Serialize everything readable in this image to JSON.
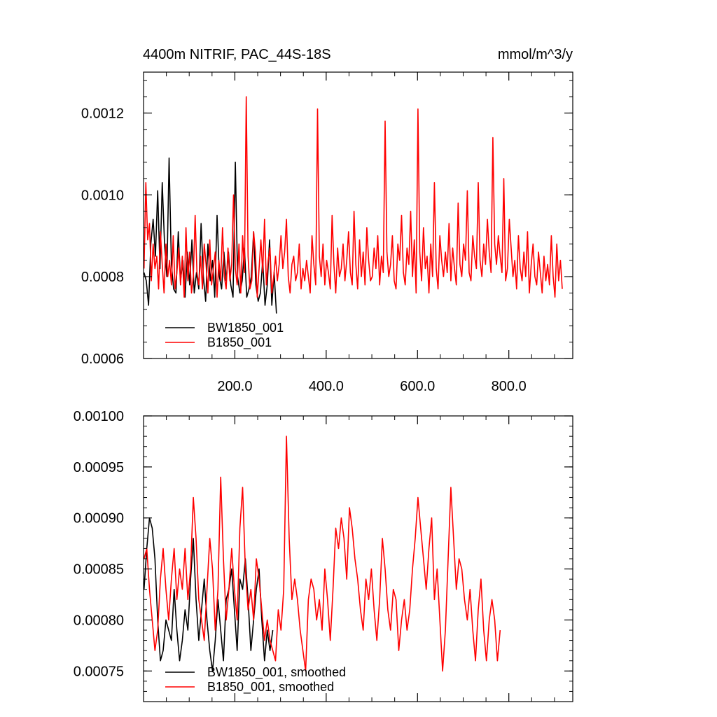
{
  "header": {
    "title": "4400m NITRIF, PAC_44S-18S",
    "units": "mmol/m^3/y"
  },
  "chart_data": [
    {
      "type": "line",
      "xlim": [
        0,
        940
      ],
      "ylim": [
        0.0006,
        0.0013
      ],
      "x_tick_labels": [
        "200.0",
        "400.0",
        "600.0",
        "800.0"
      ],
      "x_ticks": [
        200,
        400,
        600,
        800
      ],
      "y_tick_labels": [
        "0.0006",
        "0.0008",
        "0.0010",
        "0.0012"
      ],
      "y_ticks": [
        0.0006,
        0.0008,
        0.001,
        0.0012
      ],
      "legend_position": "bottom-left",
      "grid": false,
      "series": [
        {
          "name": "BW1850_001",
          "color": "#000000",
          "x_start": 1,
          "x_step": 5,
          "values": [
            0.00081,
            0.00079,
            0.00073,
            0.00088,
            0.00094,
            0.00085,
            0.00101,
            0.00082,
            0.00103,
            0.00088,
            0.0008,
            0.00109,
            0.00083,
            0.00077,
            0.00076,
            0.00091,
            0.00079,
            0.00084,
            0.00075,
            0.00086,
            0.00078,
            0.00089,
            0.00076,
            0.00081,
            0.00077,
            0.00093,
            0.0008,
            0.00074,
            0.00088,
            0.00079,
            0.00084,
            0.00075,
            0.00095,
            0.0008,
            0.00077,
            0.00086,
            0.00079,
            0.00086,
            0.00078,
            0.00075,
            0.00108,
            0.0008,
            0.00076,
            0.00079,
            0.00087,
            0.00075,
            0.00077,
            0.0008,
            0.00091,
            0.00078,
            0.00074,
            0.00076,
            0.00084,
            0.00073,
            0.00078,
            0.00089,
            0.00073,
            0.00081,
            0.00071
          ]
        },
        {
          "name": "B1850_001",
          "color": "#ff0000",
          "x_start": 1,
          "x_step": 4,
          "values": [
            0.00082,
            0.00103,
            0.00089,
            0.00093,
            0.00079,
            0.00088,
            0.00082,
            0.00085,
            0.00077,
            0.00091,
            0.00083,
            0.00076,
            0.00088,
            0.0008,
            0.00084,
            0.00078,
            0.0009,
            0.00077,
            0.00081,
            0.00087,
            0.00078,
            0.00085,
            0.00075,
            0.00092,
            0.00079,
            0.00086,
            0.00076,
            0.0008,
            0.00095,
            0.00081,
            0.00078,
            0.00085,
            0.00077,
            0.00088,
            0.00083,
            0.00076,
            0.00089,
            0.00078,
            0.00082,
            0.00086,
            0.00075,
            0.00084,
            0.00079,
            0.00092,
            0.0008,
            0.00077,
            0.00087,
            0.00079,
            0.00083,
            0.001,
            0.00082,
            0.00078,
            0.00088,
            0.00076,
            0.0009,
            0.00081,
            0.00124,
            0.00085,
            0.00077,
            0.00079,
            0.00091,
            0.00086,
            0.00075,
            0.00082,
            0.00089,
            0.00081,
            0.00094,
            0.00078,
            0.00084,
            0.00087,
            0.00076,
            0.0008,
            0.00085,
            0.00079,
            0.00083,
            0.0009,
            0.00082,
            0.00086,
            0.00094,
            0.0008,
            0.00076,
            0.00083,
            0.00085,
            0.00079,
            0.00081,
            0.00088,
            0.00077,
            0.00082,
            0.00079,
            0.00084,
            0.0008,
            0.00076,
            0.0009,
            0.00083,
            0.00078,
            0.00121,
            0.00085,
            0.0008,
            0.00088,
            0.00078,
            0.00084,
            0.00081,
            0.00077,
            0.00095,
            0.00083,
            0.00076,
            0.00087,
            0.0008,
            0.00082,
            0.00088,
            0.00079,
            0.00084,
            0.00091,
            0.00081,
            0.00078,
            0.00096,
            0.00083,
            0.00077,
            0.00089,
            0.0008,
            0.00086,
            0.00078,
            0.00092,
            0.00084,
            0.00079,
            0.0008,
            0.00087,
            0.00082,
            0.0009,
            0.00078,
            0.00085,
            0.00081,
            0.00118,
            0.00086,
            0.0008,
            0.00083,
            0.0009,
            0.00079,
            0.00077,
            0.00088,
            0.00084,
            0.00095,
            0.00081,
            0.00078,
            0.00087,
            0.00083,
            0.00096,
            0.0008,
            0.00089,
            0.00076,
            0.00121,
            0.00086,
            0.00079,
            0.00092,
            0.00082,
            0.00085,
            0.00076,
            0.00088,
            0.0008,
            0.00103,
            0.00082,
            0.00077,
            0.0009,
            0.00084,
            0.0008,
            0.00086,
            0.00081,
            0.00093,
            0.00079,
            0.00087,
            0.00082,
            0.00078,
            0.00098,
            0.00083,
            0.0008,
            0.00088,
            0.00084,
            0.00101,
            0.00081,
            0.00079,
            0.0009,
            0.00085,
            0.00082,
            0.00103,
            0.00084,
            0.0008,
            0.00088,
            0.00083,
            0.00094,
            0.00086,
            0.00081,
            0.00114,
            0.00088,
            0.00083,
            0.0009,
            0.00085,
            0.00081,
            0.00104,
            0.00079,
            0.00082,
            0.00094,
            0.00087,
            0.0008,
            0.00084,
            0.00077,
            0.0009,
            0.00082,
            0.00079,
            0.00086,
            0.0008,
            0.00091,
            0.00076,
            0.00083,
            0.00088,
            0.0008,
            0.00078,
            0.00086,
            0.00081,
            0.00076,
            0.00085,
            0.00079,
            0.00083,
            0.00078,
            0.0009,
            0.0008,
            0.00075,
            0.00088,
            0.00079,
            0.00084,
            0.00077
          ]
        }
      ]
    },
    {
      "type": "line",
      "xlim": [
        0,
        940
      ],
      "ylim": [
        0.00072,
        0.001
      ],
      "y_tick_labels": [
        "0.00075",
        "0.00080",
        "0.00085",
        "0.00090",
        "0.00095",
        "0.00100"
      ],
      "y_ticks": [
        0.00075,
        0.0008,
        0.00085,
        0.0009,
        0.00095,
        0.001
      ],
      "legend_position": "bottom-left",
      "grid": false,
      "series": [
        {
          "name": "BW1850_001, smoothed",
          "color": "#000000",
          "x_start": 1,
          "x_step": 6,
          "values": [
            0.00083,
            0.00087,
            0.0009,
            0.00089,
            0.00086,
            0.0008,
            0.00076,
            0.00077,
            0.0008,
            0.00079,
            0.00078,
            0.00083,
            0.00079,
            0.00076,
            0.00078,
            0.00081,
            0.00079,
            0.00084,
            0.00088,
            0.00082,
            0.00078,
            0.00081,
            0.00084,
            0.0008,
            0.00077,
            0.00075,
            0.00078,
            0.00082,
            0.00079,
            0.00076,
            0.00082,
            0.00083,
            0.00085,
            0.00081,
            0.00077,
            0.00084,
            0.00083,
            0.00086,
            0.00082,
            0.00077,
            0.0008,
            0.00083,
            0.00085,
            0.0008,
            0.00076,
            0.00079,
            0.00077,
            0.00079
          ]
        },
        {
          "name": "B1850_001, smoothed",
          "color": "#ff0000",
          "x_start": 1,
          "x_step": 6,
          "values": [
            0.00086,
            0.00087,
            0.00083,
            0.0008,
            0.00077,
            0.00079,
            0.00084,
            0.00087,
            0.00083,
            0.0008,
            0.00084,
            0.00087,
            0.00082,
            0.00085,
            0.00083,
            0.00087,
            0.00082,
            0.00085,
            0.00092,
            0.00088,
            0.00082,
            0.0008,
            0.00078,
            0.00083,
            0.00088,
            0.00085,
            0.00079,
            0.00083,
            0.00094,
            0.00086,
            0.0008,
            0.00083,
            0.00087,
            0.00083,
            0.0008,
            0.00089,
            0.00093,
            0.00085,
            0.00081,
            0.00083,
            0.0008,
            0.00086,
            0.00084,
            0.00081,
            0.00078,
            0.0008,
            0.00078,
            0.00077,
            0.00076,
            0.00081,
            0.00079,
            0.00083,
            0.00098,
            0.00088,
            0.00082,
            0.00084,
            0.00082,
            0.00079,
            0.00077,
            0.00075,
            0.00082,
            0.00084,
            0.00083,
            0.0008,
            0.00082,
            0.00079,
            0.00085,
            0.00082,
            0.00078,
            0.00083,
            0.00089,
            0.00087,
            0.0009,
            0.00088,
            0.00084,
            0.00091,
            0.00089,
            0.00086,
            0.00084,
            0.00081,
            0.00079,
            0.00084,
            0.00082,
            0.00085,
            0.00081,
            0.00078,
            0.00082,
            0.00088,
            0.00085,
            0.00081,
            0.00079,
            0.00083,
            0.00082,
            0.00077,
            0.0008,
            0.00082,
            0.00079,
            0.00081,
            0.00085,
            0.00088,
            0.00092,
            0.00089,
            0.00086,
            0.00083,
            0.00087,
            0.0009,
            0.00082,
            0.00085,
            0.0008,
            0.00075,
            0.00079,
            0.00086,
            0.00093,
            0.00088,
            0.00083,
            0.00086,
            0.00085,
            0.00082,
            0.0008,
            0.00083,
            0.00079,
            0.00076,
            0.00081,
            0.00084,
            0.00079,
            0.00076,
            0.0008,
            0.00082,
            0.0008,
            0.00076,
            0.00079
          ]
        }
      ]
    }
  ]
}
